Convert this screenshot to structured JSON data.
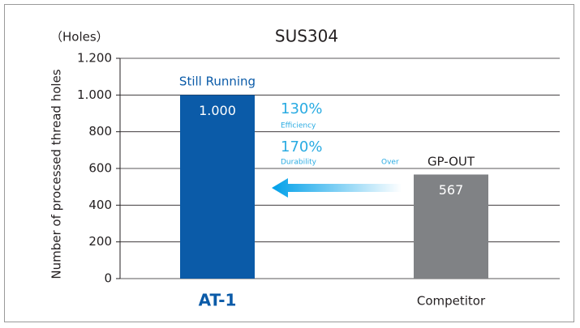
{
  "chart_data": {
    "type": "bar",
    "title": "SUS304",
    "unit_label": "（Holes）",
    "y_axis_label": "Number of processed thread holes",
    "categories": [
      "AT-1",
      "Competitor"
    ],
    "values": [
      1000,
      567
    ],
    "value_labels": [
      "1.000",
      "567"
    ],
    "colors": [
      "#0b5ba8",
      "#808285"
    ],
    "ylim": [
      0,
      1200
    ],
    "yticks": [
      0,
      200,
      400,
      600,
      800,
      {
        "value": 1000,
        "label": "1.000"
      },
      {
        "value": 1200,
        "label": "1.200"
      }
    ],
    "grid": true,
    "annotations": [
      "Still Running",
      "130%",
      "Efficiency",
      "170%",
      "Durability",
      "Over",
      "GP-OUT"
    ]
  }
}
